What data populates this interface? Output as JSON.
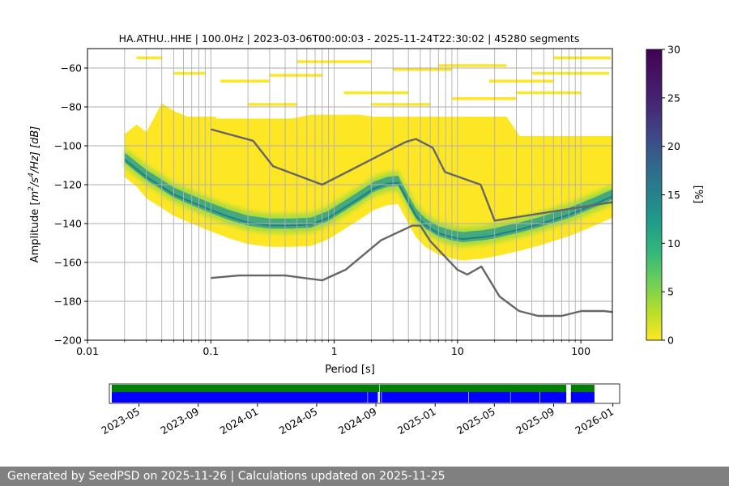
{
  "chart_data": {
    "type": "heatmap",
    "title": "HA.ATHU..HHE | 100.0Hz | 2023-03-06T00:00:03 - 2025-11-24T22:30:02 | 45280 segments",
    "xlabel": "Period [s]",
    "ylabel": "Amplitude [m²/s⁴/Hz] [dB]",
    "ylabel_parts": {
      "prefix": "Amplitude [",
      "unit_base": "m",
      "sup1": "2",
      "mid": "/s",
      "sup2": "4",
      "suffix": "/Hz] [dB]"
    },
    "x_scale": "log",
    "xlim": [
      0.01,
      180
    ],
    "ylim": [
      -200,
      -50
    ],
    "x_ticks": [
      0.01,
      0.1,
      1,
      10,
      100
    ],
    "x_tick_labels": [
      "0.01",
      "0.1",
      "1",
      "10",
      "100"
    ],
    "y_ticks": [
      -200,
      -180,
      -160,
      -140,
      -120,
      -100,
      -80,
      -60
    ],
    "y_tick_labels": [
      "−200",
      "−180",
      "−160",
      "−140",
      "−120",
      "−100",
      "−80",
      "−60"
    ],
    "grid": true,
    "colorbar": {
      "label": "[%]",
      "min": 0,
      "max": 30,
      "ticks": [
        0,
        5,
        10,
        15,
        20,
        25,
        30
      ],
      "colormap": "viridis"
    },
    "nhnm": {
      "name": "NHNM",
      "x": [
        0.1,
        0.22,
        0.32,
        0.8,
        3.8,
        4.6,
        6.3,
        7.9,
        15.4,
        20,
        180
      ],
      "y": [
        -91.5,
        -97.4,
        -110.5,
        -120,
        -98,
        -96.5,
        -101,
        -113.5,
        -120,
        -138.5,
        -129
      ]
    },
    "nlnm": {
      "name": "NLNM",
      "x": [
        0.1,
        0.17,
        0.4,
        0.8,
        1.24,
        2.4,
        4.3,
        5,
        6,
        10,
        12,
        15.6,
        21.9,
        31.6,
        45,
        70,
        101,
        154,
        180
      ],
      "y": [
        -168,
        -166.7,
        -166.7,
        -169.2,
        -163.7,
        -148.6,
        -141.1,
        -141.1,
        -149,
        -163.8,
        -166.2,
        -162.1,
        -177.5,
        -185,
        -187.5,
        -187.5,
        -185,
        -185,
        -185.5
      ]
    },
    "psd_mode": {
      "x": [
        0.02,
        0.025,
        0.03,
        0.04,
        0.05,
        0.07,
        0.1,
        0.14,
        0.2,
        0.3,
        0.45,
        0.65,
        0.9,
        1.2,
        1.6,
        2.1,
        2.7,
        3.3,
        4,
        4.6,
        5.5,
        7,
        9,
        11,
        13,
        16,
        20,
        25,
        32,
        45,
        60,
        80,
        100,
        130,
        180
      ],
      "y": [
        -106,
        -111,
        -115,
        -120,
        -124,
        -128,
        -132,
        -135.5,
        -138.5,
        -140,
        -140,
        -139.5,
        -136,
        -131,
        -126,
        -121,
        -118.5,
        -118,
        -128,
        -135,
        -140,
        -144,
        -146,
        -147,
        -146.5,
        -146,
        -145,
        -143.5,
        -142,
        -139.5,
        -137,
        -134.5,
        -132,
        -129,
        -125
      ]
    },
    "availability": {
      "tick_labels": [
        "2023-05",
        "2023-09",
        "2024-01",
        "2024-05",
        "2024-09",
        "2025-01",
        "2025-05",
        "2025-09",
        "2026-01"
      ],
      "tick_months_since_start": [
        2,
        6,
        10,
        14,
        18,
        22,
        26,
        30,
        34
      ],
      "axis_start": "2023-03",
      "axis_end": "2026-01-15",
      "data_start": "2023-03-06",
      "data_end": "2025-11-24",
      "rows": [
        {
          "color": "#008000",
          "gaps": [
            [
              "2024-09-08",
              "2024-09-09"
            ],
            [
              "2025-09-27",
              "2025-10-06"
            ]
          ]
        },
        {
          "color": "#0000ff",
          "gaps": [
            [
              "2024-08-14",
              "2024-08-15"
            ],
            [
              "2024-09-05",
              "2024-09-09"
            ],
            [
              "2024-09-12",
              "2024-09-13"
            ],
            [
              "2025-03-08",
              "2025-03-09"
            ],
            [
              "2025-06-03",
              "2025-06-04"
            ],
            [
              "2025-08-03",
              "2025-08-04"
            ],
            [
              "2025-09-27",
              "2025-10-06"
            ]
          ]
        }
      ]
    }
  },
  "footer": {
    "text": "Generated by SeedPSD on 2025-11-26 | Calculations updated on 2025-11-25"
  }
}
